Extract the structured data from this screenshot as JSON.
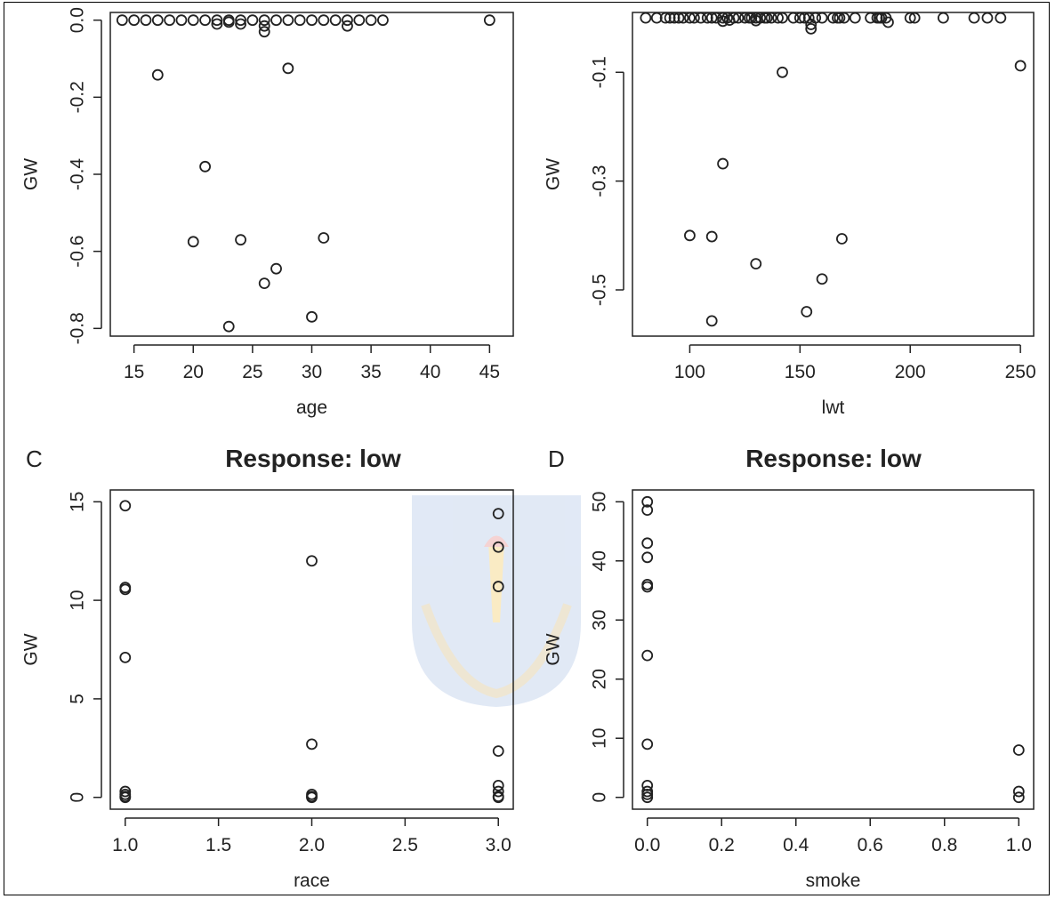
{
  "figure": {
    "background": "#ffffff",
    "mark_color": "#222222"
  },
  "chart_data": [
    {
      "id": "A",
      "type": "scatter",
      "title": "",
      "panel_letter": "",
      "xlabel": "age",
      "ylabel": "GW",
      "xlim": [
        13,
        47
      ],
      "ylim": [
        -0.82,
        0.02
      ],
      "xticks": [
        15,
        20,
        25,
        30,
        35,
        40,
        45
      ],
      "xtick_labels": [
        "15",
        "20",
        "25",
        "30",
        "35",
        "40",
        "45"
      ],
      "yticks": [
        0.0,
        -0.2,
        -0.4,
        -0.6,
        -0.8
      ],
      "ytick_labels": [
        "0.0",
        "-0.2",
        "-0.4",
        "-0.6",
        "-0.8"
      ],
      "grid": false,
      "points": [
        {
          "x": 14,
          "y": 0
        },
        {
          "x": 15,
          "y": 0
        },
        {
          "x": 16,
          "y": 0
        },
        {
          "x": 17,
          "y": 0
        },
        {
          "x": 18,
          "y": 0
        },
        {
          "x": 19,
          "y": 0
        },
        {
          "x": 20,
          "y": 0
        },
        {
          "x": 21,
          "y": 0
        },
        {
          "x": 22,
          "y": 0
        },
        {
          "x": 22,
          "y": -0.01
        },
        {
          "x": 23,
          "y": 0
        },
        {
          "x": 23,
          "y": -0.005
        },
        {
          "x": 24,
          "y": 0
        },
        {
          "x": 24,
          "y": -0.01
        },
        {
          "x": 25,
          "y": 0
        },
        {
          "x": 26,
          "y": 0
        },
        {
          "x": 26,
          "y": -0.015
        },
        {
          "x": 26,
          "y": -0.03
        },
        {
          "x": 27,
          "y": 0
        },
        {
          "x": 28,
          "y": 0
        },
        {
          "x": 29,
          "y": 0
        },
        {
          "x": 30,
          "y": 0
        },
        {
          "x": 31,
          "y": 0
        },
        {
          "x": 32,
          "y": 0
        },
        {
          "x": 33,
          "y": 0
        },
        {
          "x": 33,
          "y": -0.015
        },
        {
          "x": 34,
          "y": 0
        },
        {
          "x": 35,
          "y": 0
        },
        {
          "x": 36,
          "y": 0
        },
        {
          "x": 45,
          "y": 0
        },
        {
          "x": 17,
          "y": -0.142
        },
        {
          "x": 28,
          "y": -0.125
        },
        {
          "x": 21,
          "y": -0.38
        },
        {
          "x": 20,
          "y": -0.575
        },
        {
          "x": 24,
          "y": -0.57
        },
        {
          "x": 31,
          "y": -0.565
        },
        {
          "x": 27,
          "y": -0.645
        },
        {
          "x": 26,
          "y": -0.683
        },
        {
          "x": 30,
          "y": -0.77
        },
        {
          "x": 23,
          "y": -0.795
        }
      ]
    },
    {
      "id": "B",
      "type": "scatter",
      "title": "",
      "panel_letter": "",
      "xlabel": "lwt",
      "ylabel": "GW",
      "xlim": [
        74,
        256
      ],
      "ylim": [
        -0.585,
        0.01
      ],
      "xticks": [
        100,
        150,
        200,
        250
      ],
      "xtick_labels": [
        "100",
        "150",
        "200",
        "250"
      ],
      "yticks": [
        -0.1,
        -0.3,
        -0.5
      ],
      "ytick_labels": [
        "-0.1",
        "-0.3",
        "-0.5"
      ],
      "grid": false,
      "points": [
        {
          "x": 80,
          "y": 0
        },
        {
          "x": 85,
          "y": 0
        },
        {
          "x": 89,
          "y": 0
        },
        {
          "x": 91,
          "y": 0
        },
        {
          "x": 93,
          "y": 0
        },
        {
          "x": 95,
          "y": 0
        },
        {
          "x": 97,
          "y": 0
        },
        {
          "x": 100,
          "y": 0
        },
        {
          "x": 102,
          "y": 0
        },
        {
          "x": 105,
          "y": 0
        },
        {
          "x": 108,
          "y": 0
        },
        {
          "x": 110,
          "y": 0
        },
        {
          "x": 112,
          "y": 0
        },
        {
          "x": 115,
          "y": 0
        },
        {
          "x": 115,
          "y": -0.006
        },
        {
          "x": 117,
          "y": 0
        },
        {
          "x": 118,
          "y": -0.004
        },
        {
          "x": 120,
          "y": 0
        },
        {
          "x": 122,
          "y": 0
        },
        {
          "x": 125,
          "y": 0
        },
        {
          "x": 127,
          "y": 0
        },
        {
          "x": 128,
          "y": 0
        },
        {
          "x": 130,
          "y": 0
        },
        {
          "x": 130,
          "y": -0.005
        },
        {
          "x": 132,
          "y": 0
        },
        {
          "x": 134,
          "y": 0
        },
        {
          "x": 135,
          "y": 0
        },
        {
          "x": 137,
          "y": 0
        },
        {
          "x": 140,
          "y": 0
        },
        {
          "x": 142,
          "y": 0
        },
        {
          "x": 147,
          "y": 0
        },
        {
          "x": 150,
          "y": 0
        },
        {
          "x": 152,
          "y": 0
        },
        {
          "x": 154,
          "y": 0
        },
        {
          "x": 155,
          "y": -0.012
        },
        {
          "x": 155,
          "y": -0.02
        },
        {
          "x": 157,
          "y": 0
        },
        {
          "x": 160,
          "y": 0
        },
        {
          "x": 165,
          "y": 0
        },
        {
          "x": 167,
          "y": 0
        },
        {
          "x": 168,
          "y": 0
        },
        {
          "x": 170,
          "y": 0
        },
        {
          "x": 175,
          "y": 0
        },
        {
          "x": 182,
          "y": 0
        },
        {
          "x": 185,
          "y": 0
        },
        {
          "x": 186,
          "y": 0
        },
        {
          "x": 187,
          "y": 0
        },
        {
          "x": 189,
          "y": 0
        },
        {
          "x": 190,
          "y": -0.008
        },
        {
          "x": 200,
          "y": 0
        },
        {
          "x": 202,
          "y": 0
        },
        {
          "x": 215,
          "y": 0
        },
        {
          "x": 229,
          "y": 0
        },
        {
          "x": 235,
          "y": 0
        },
        {
          "x": 241,
          "y": 0
        },
        {
          "x": 250,
          "y": -0.088
        },
        {
          "x": 142,
          "y": -0.1
        },
        {
          "x": 115,
          "y": -0.268
        },
        {
          "x": 100,
          "y": -0.4
        },
        {
          "x": 110,
          "y": -0.402
        },
        {
          "x": 169,
          "y": -0.406
        },
        {
          "x": 130,
          "y": -0.452
        },
        {
          "x": 160,
          "y": -0.48
        },
        {
          "x": 153,
          "y": -0.54
        },
        {
          "x": 110,
          "y": -0.557
        }
      ]
    },
    {
      "id": "C",
      "type": "scatter",
      "title": "Response: low",
      "panel_letter": "C",
      "xlabel": "race",
      "ylabel": "GW",
      "xlim": [
        0.92,
        3.08
      ],
      "ylim": [
        -0.6,
        15.6
      ],
      "xticks": [
        1.0,
        1.5,
        2.0,
        2.5,
        3.0
      ],
      "xtick_labels": [
        "1.0",
        "1.5",
        "2.0",
        "2.5",
        "3.0"
      ],
      "yticks": [
        0,
        5,
        10,
        15
      ],
      "ytick_labels": [
        "0",
        "5",
        "10",
        "15"
      ],
      "grid": false,
      "points": [
        {
          "x": 1,
          "y": 14.8
        },
        {
          "x": 1,
          "y": 10.65
        },
        {
          "x": 1,
          "y": 10.55
        },
        {
          "x": 1,
          "y": 7.1
        },
        {
          "x": 1,
          "y": 0.3
        },
        {
          "x": 1,
          "y": 0.15
        },
        {
          "x": 1,
          "y": 0.05
        },
        {
          "x": 1,
          "y": 0
        },
        {
          "x": 2,
          "y": 12.0
        },
        {
          "x": 2,
          "y": 2.7
        },
        {
          "x": 2,
          "y": 0.15
        },
        {
          "x": 2,
          "y": 0.05
        },
        {
          "x": 2,
          "y": 0
        },
        {
          "x": 3,
          "y": 14.4
        },
        {
          "x": 3,
          "y": 12.7
        },
        {
          "x": 3,
          "y": 10.7
        },
        {
          "x": 3,
          "y": 2.35
        },
        {
          "x": 3,
          "y": 0.6
        },
        {
          "x": 3,
          "y": 0.3
        },
        {
          "x": 3,
          "y": 0.05
        },
        {
          "x": 3,
          "y": 0
        }
      ]
    },
    {
      "id": "D",
      "type": "scatter",
      "title": "Response: low",
      "panel_letter": "D",
      "xlabel": "smoke",
      "ylabel": "GW",
      "xlim": [
        -0.04,
        1.04
      ],
      "ylim": [
        -2.0,
        52.0
      ],
      "xticks": [
        0.0,
        0.2,
        0.4,
        0.6,
        0.8,
        1.0
      ],
      "xtick_labels": [
        "0.0",
        "0.2",
        "0.4",
        "0.6",
        "0.8",
        "1.0"
      ],
      "yticks": [
        0,
        10,
        20,
        30,
        40,
        50
      ],
      "ytick_labels": [
        "0",
        "10",
        "20",
        "30",
        "40",
        "50"
      ],
      "grid": false,
      "points": [
        {
          "x": 0,
          "y": 50.0
        },
        {
          "x": 0,
          "y": 48.6
        },
        {
          "x": 0,
          "y": 43.0
        },
        {
          "x": 0,
          "y": 40.6
        },
        {
          "x": 0,
          "y": 36.0
        },
        {
          "x": 0,
          "y": 35.6
        },
        {
          "x": 0,
          "y": 24.0
        },
        {
          "x": 0,
          "y": 9.0
        },
        {
          "x": 0,
          "y": 2.0
        },
        {
          "x": 0,
          "y": 1.0
        },
        {
          "x": 0,
          "y": 0.5
        },
        {
          "x": 0,
          "y": 0
        },
        {
          "x": 1,
          "y": 8.0
        },
        {
          "x": 1,
          "y": 1.0
        },
        {
          "x": 1,
          "y": 0
        }
      ]
    }
  ]
}
